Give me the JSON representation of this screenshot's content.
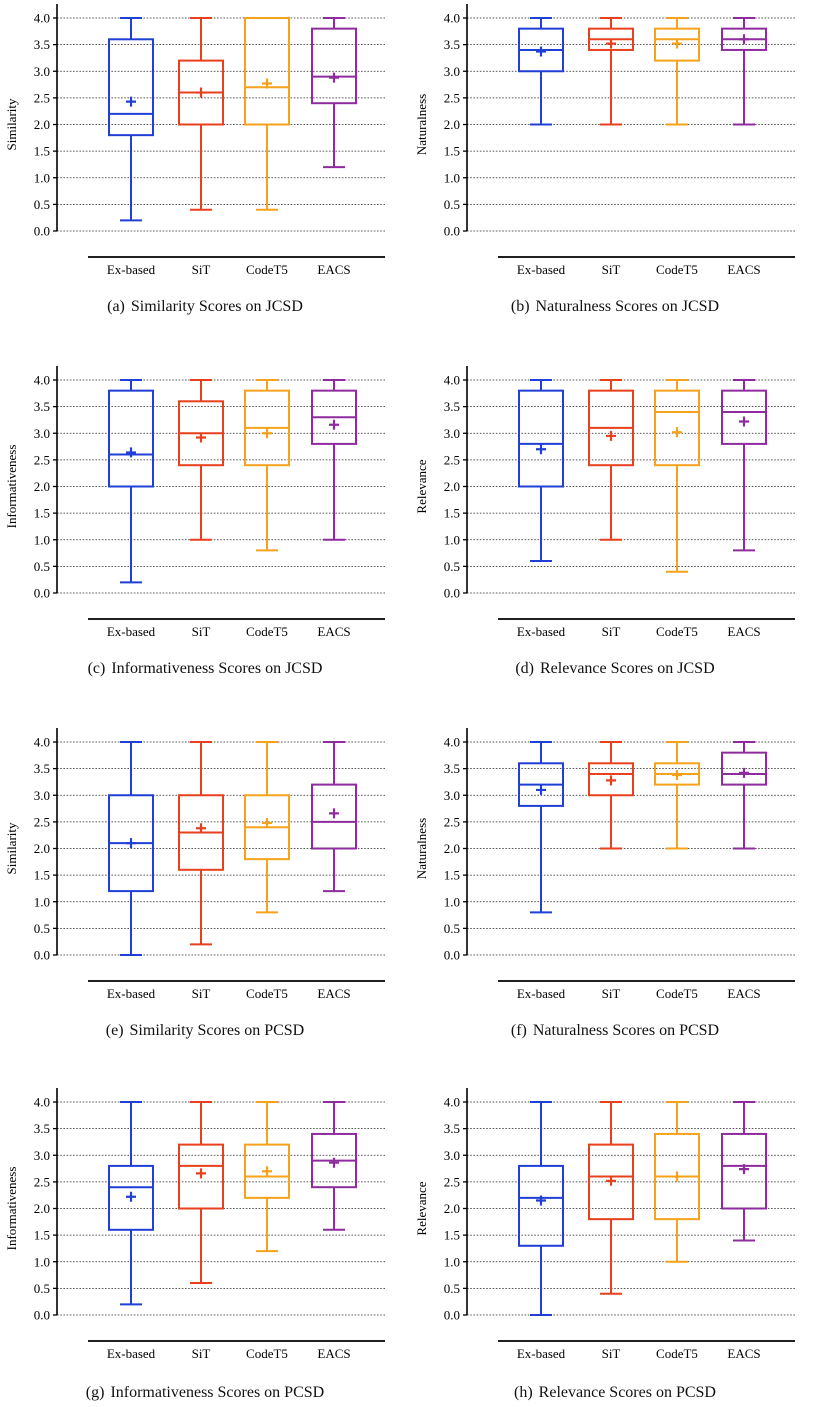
{
  "figure": {
    "panels": [
      {
        "label": "(a)",
        "caption": "Similarity Scores on JCSD"
      },
      {
        "label": "(b)",
        "caption": "Naturalness Scores on JCSD"
      },
      {
        "label": "(c)",
        "caption": "Informativeness Scores on JCSD"
      },
      {
        "label": "(d)",
        "caption": "Relevance Scores on JCSD"
      },
      {
        "label": "(e)",
        "caption": "Similarity Scores on PCSD"
      },
      {
        "label": "(f)",
        "caption": "Naturalness Scores on PCSD"
      },
      {
        "label": "(g)",
        "caption": "Informativeness Scores on PCSD"
      },
      {
        "label": "(h)",
        "caption": "Relevance Scores on PCSD"
      }
    ]
  },
  "chart_data": [
    {
      "type": "box",
      "title": "",
      "ylabel": "Similarity",
      "xlabel": "",
      "categories": [
        "Ex-based",
        "SiT",
        "CodeT5",
        "EACS"
      ],
      "colors": [
        "#1f3fd6",
        "#e8401c",
        "#f7a21b",
        "#8e2c9e"
      ],
      "ylim": [
        0,
        4
      ],
      "yticks": [
        "0.0",
        "0.5",
        "1.0",
        "1.5",
        "2.0",
        "2.5",
        "3.0",
        "3.5",
        "4.0"
      ],
      "grid": true,
      "series": [
        {
          "category": "Ex-based",
          "min": 0.2,
          "q1": 1.8,
          "median": 2.2,
          "q3": 3.6,
          "max": 4.0,
          "mean": 2.43
        },
        {
          "category": "SiT",
          "min": 0.4,
          "q1": 2.0,
          "median": 2.6,
          "q3": 3.2,
          "max": 4.0,
          "mean": 2.6
        },
        {
          "category": "CodeT5",
          "min": 0.4,
          "q1": 2.0,
          "median": 2.7,
          "q3": 4.0,
          "max": 4.0,
          "mean": 2.77
        },
        {
          "category": "EACS",
          "min": 1.2,
          "q1": 2.4,
          "median": 2.9,
          "q3": 3.8,
          "max": 4.0,
          "mean": 2.88
        }
      ]
    },
    {
      "type": "box",
      "title": "",
      "ylabel": "Naturalness",
      "xlabel": "",
      "categories": [
        "Ex-based",
        "SiT",
        "CodeT5",
        "EACS"
      ],
      "colors": [
        "#1f3fd6",
        "#e8401c",
        "#f7a21b",
        "#8e2c9e"
      ],
      "ylim": [
        0,
        4
      ],
      "yticks": [
        "0.0",
        "0.5",
        "1.0",
        "1.5",
        "2.0",
        "2.5",
        "3.0",
        "3.5",
        "4.0"
      ],
      "grid": true,
      "series": [
        {
          "category": "Ex-based",
          "min": 2.0,
          "q1": 3.0,
          "median": 3.4,
          "q3": 3.8,
          "max": 4.0,
          "mean": 3.37
        },
        {
          "category": "SiT",
          "min": 2.0,
          "q1": 3.4,
          "median": 3.6,
          "q3": 3.8,
          "max": 4.0,
          "mean": 3.52
        },
        {
          "category": "CodeT5",
          "min": 2.0,
          "q1": 3.2,
          "median": 3.6,
          "q3": 3.8,
          "max": 4.0,
          "mean": 3.52
        },
        {
          "category": "EACS",
          "min": 2.0,
          "q1": 3.4,
          "median": 3.6,
          "q3": 3.8,
          "max": 4.0,
          "mean": 3.6
        }
      ]
    },
    {
      "type": "box",
      "title": "",
      "ylabel": "Informativeness",
      "xlabel": "",
      "categories": [
        "Ex-based",
        "SiT",
        "CodeT5",
        "EACS"
      ],
      "colors": [
        "#1f3fd6",
        "#e8401c",
        "#f7a21b",
        "#8e2c9e"
      ],
      "ylim": [
        0,
        4
      ],
      "yticks": [
        "0.0",
        "0.5",
        "1.0",
        "1.5",
        "2.0",
        "2.5",
        "3.0",
        "3.5",
        "4.0"
      ],
      "grid": true,
      "series": [
        {
          "category": "Ex-based",
          "min": 0.2,
          "q1": 2.0,
          "median": 2.6,
          "q3": 3.8,
          "max": 4.0,
          "mean": 2.64
        },
        {
          "category": "SiT",
          "min": 1.0,
          "q1": 2.4,
          "median": 3.0,
          "q3": 3.6,
          "max": 4.0,
          "mean": 2.92
        },
        {
          "category": "CodeT5",
          "min": 0.8,
          "q1": 2.4,
          "median": 3.1,
          "q3": 3.8,
          "max": 4.0,
          "mean": 3.0
        },
        {
          "category": "EACS",
          "min": 1.0,
          "q1": 2.8,
          "median": 3.3,
          "q3": 3.8,
          "max": 4.0,
          "mean": 3.16
        }
      ]
    },
    {
      "type": "box",
      "title": "",
      "ylabel": "Relevance",
      "xlabel": "",
      "categories": [
        "Ex-based",
        "SiT",
        "CodeT5",
        "EACS"
      ],
      "colors": [
        "#1f3fd6",
        "#e8401c",
        "#f7a21b",
        "#8e2c9e"
      ],
      "ylim": [
        0,
        4
      ],
      "yticks": [
        "0.0",
        "0.5",
        "1.0",
        "1.5",
        "2.0",
        "2.5",
        "3.0",
        "3.5",
        "4.0"
      ],
      "grid": true,
      "series": [
        {
          "category": "Ex-based",
          "min": 0.6,
          "q1": 2.0,
          "median": 2.8,
          "q3": 3.8,
          "max": 4.0,
          "mean": 2.7
        },
        {
          "category": "SiT",
          "min": 1.0,
          "q1": 2.4,
          "median": 3.1,
          "q3": 3.8,
          "max": 4.0,
          "mean": 2.95
        },
        {
          "category": "CodeT5",
          "min": 0.4,
          "q1": 2.4,
          "median": 3.4,
          "q3": 3.8,
          "max": 4.0,
          "mean": 3.02
        },
        {
          "category": "EACS",
          "min": 0.8,
          "q1": 2.8,
          "median": 3.4,
          "q3": 3.8,
          "max": 4.0,
          "mean": 3.22
        }
      ]
    },
    {
      "type": "box",
      "title": "",
      "ylabel": "Similarity",
      "xlabel": "",
      "categories": [
        "Ex-based",
        "SiT",
        "CodeT5",
        "EACS"
      ],
      "colors": [
        "#1f3fd6",
        "#e8401c",
        "#f7a21b",
        "#8e2c9e"
      ],
      "ylim": [
        0,
        4
      ],
      "yticks": [
        "0.0",
        "0.5",
        "1.0",
        "1.5",
        "2.0",
        "2.5",
        "3.0",
        "3.5",
        "4.0"
      ],
      "grid": true,
      "series": [
        {
          "category": "Ex-based",
          "min": 0.0,
          "q1": 1.2,
          "median": 2.1,
          "q3": 3.0,
          "max": 4.0,
          "mean": 2.1
        },
        {
          "category": "SiT",
          "min": 0.2,
          "q1": 1.6,
          "median": 2.3,
          "q3": 3.0,
          "max": 4.0,
          "mean": 2.38
        },
        {
          "category": "CodeT5",
          "min": 0.8,
          "q1": 1.8,
          "median": 2.4,
          "q3": 3.0,
          "max": 4.0,
          "mean": 2.48
        },
        {
          "category": "EACS",
          "min": 1.2,
          "q1": 2.0,
          "median": 2.5,
          "q3": 3.2,
          "max": 4.0,
          "mean": 2.66
        }
      ]
    },
    {
      "type": "box",
      "title": "",
      "ylabel": "Naturalness",
      "xlabel": "",
      "categories": [
        "Ex-based",
        "SiT",
        "CodeT5",
        "EACS"
      ],
      "colors": [
        "#1f3fd6",
        "#e8401c",
        "#f7a21b",
        "#8e2c9e"
      ],
      "ylim": [
        0,
        4
      ],
      "yticks": [
        "0.0",
        "0.5",
        "1.0",
        "1.5",
        "2.0",
        "2.5",
        "3.0",
        "3.5",
        "4.0"
      ],
      "grid": true,
      "series": [
        {
          "category": "Ex-based",
          "min": 0.8,
          "q1": 2.8,
          "median": 3.2,
          "q3": 3.6,
          "max": 4.0,
          "mean": 3.1
        },
        {
          "category": "SiT",
          "min": 2.0,
          "q1": 3.0,
          "median": 3.4,
          "q3": 3.6,
          "max": 4.0,
          "mean": 3.28
        },
        {
          "category": "CodeT5",
          "min": 2.0,
          "q1": 3.2,
          "median": 3.4,
          "q3": 3.6,
          "max": 4.0,
          "mean": 3.38
        },
        {
          "category": "EACS",
          "min": 2.0,
          "q1": 3.2,
          "median": 3.4,
          "q3": 3.8,
          "max": 4.0,
          "mean": 3.42
        }
      ]
    },
    {
      "type": "box",
      "title": "",
      "ylabel": "Informativeness",
      "xlabel": "",
      "categories": [
        "Ex-based",
        "SiT",
        "CodeT5",
        "EACS"
      ],
      "colors": [
        "#1f3fd6",
        "#e8401c",
        "#f7a21b",
        "#8e2c9e"
      ],
      "ylim": [
        0,
        4
      ],
      "yticks": [
        "0.0",
        "0.5",
        "1.0",
        "1.5",
        "2.0",
        "2.5",
        "3.0",
        "3.5",
        "4.0"
      ],
      "grid": true,
      "series": [
        {
          "category": "Ex-based",
          "min": 0.2,
          "q1": 1.6,
          "median": 2.4,
          "q3": 2.8,
          "max": 4.0,
          "mean": 2.22
        },
        {
          "category": "SiT",
          "min": 0.6,
          "q1": 2.0,
          "median": 2.8,
          "q3": 3.2,
          "max": 4.0,
          "mean": 2.66
        },
        {
          "category": "CodeT5",
          "min": 1.2,
          "q1": 2.2,
          "median": 2.6,
          "q3": 3.2,
          "max": 4.0,
          "mean": 2.7
        },
        {
          "category": "EACS",
          "min": 1.6,
          "q1": 2.4,
          "median": 2.9,
          "q3": 3.4,
          "max": 4.0,
          "mean": 2.86
        }
      ]
    },
    {
      "type": "box",
      "title": "",
      "ylabel": "Relevance",
      "xlabel": "",
      "categories": [
        "Ex-based",
        "SiT",
        "CodeT5",
        "EACS"
      ],
      "colors": [
        "#1f3fd6",
        "#e8401c",
        "#f7a21b",
        "#8e2c9e"
      ],
      "ylim": [
        0,
        4
      ],
      "yticks": [
        "0.0",
        "0.5",
        "1.0",
        "1.5",
        "2.0",
        "2.5",
        "3.0",
        "3.5",
        "4.0"
      ],
      "grid": true,
      "series": [
        {
          "category": "Ex-based",
          "min": 0.0,
          "q1": 1.3,
          "median": 2.2,
          "q3": 2.8,
          "max": 4.0,
          "mean": 2.15
        },
        {
          "category": "SiT",
          "min": 0.4,
          "q1": 1.8,
          "median": 2.6,
          "q3": 3.2,
          "max": 4.0,
          "mean": 2.52
        },
        {
          "category": "CodeT5",
          "min": 1.0,
          "q1": 1.8,
          "median": 2.6,
          "q3": 3.4,
          "max": 4.0,
          "mean": 2.6
        },
        {
          "category": "EACS",
          "min": 1.4,
          "q1": 2.0,
          "median": 2.8,
          "q3": 3.4,
          "max": 4.0,
          "mean": 2.74
        }
      ]
    }
  ]
}
